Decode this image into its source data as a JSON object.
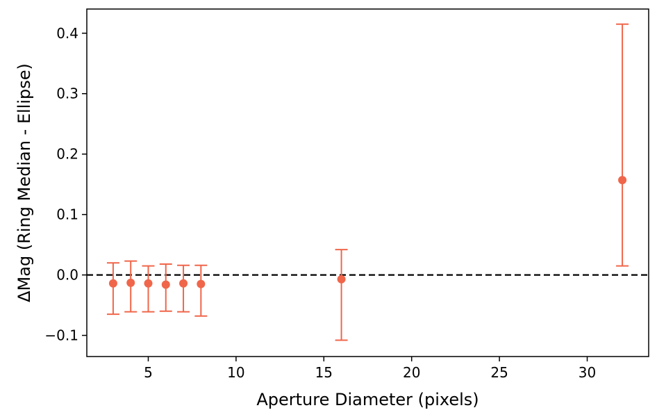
{
  "chart_data": {
    "type": "scatter",
    "xlabel": "Aperture Diameter (pixels)",
    "ylabel": "ΔMag (Ring Median - Ellipse)",
    "xlim": [
      1.5,
      33.5
    ],
    "ylim": [
      -0.135,
      0.44
    ],
    "xticks": [
      5,
      10,
      15,
      20,
      25,
      30
    ],
    "xtick_labels": [
      "5",
      "10",
      "15",
      "20",
      "25",
      "30"
    ],
    "yticks": [
      -0.1,
      0.0,
      0.1,
      0.2,
      0.3,
      0.4
    ],
    "ytick_labels": [
      "−0.1",
      "0.0",
      "0.1",
      "0.2",
      "0.3",
      "0.4"
    ],
    "grid": false,
    "reference_line": {
      "y": 0.0,
      "style": "dashed",
      "color": "#000000"
    },
    "series": [
      {
        "color": "#f0664a",
        "marker": "circle",
        "points": [
          {
            "x": 3,
            "y": -0.014,
            "err_low": -0.065,
            "err_high": 0.02
          },
          {
            "x": 4,
            "y": -0.013,
            "err_low": -0.061,
            "err_high": 0.023
          },
          {
            "x": 5,
            "y": -0.014,
            "err_low": -0.061,
            "err_high": 0.015
          },
          {
            "x": 6,
            "y": -0.016,
            "err_low": -0.06,
            "err_high": 0.018
          },
          {
            "x": 7,
            "y": -0.014,
            "err_low": -0.061,
            "err_high": 0.016
          },
          {
            "x": 8,
            "y": -0.015,
            "err_low": -0.068,
            "err_high": 0.016
          },
          {
            "x": 16,
            "y": -0.007,
            "err_low": -0.108,
            "err_high": 0.042
          },
          {
            "x": 32,
            "y": 0.157,
            "err_low": 0.015,
            "err_high": 0.415
          }
        ]
      }
    ]
  }
}
